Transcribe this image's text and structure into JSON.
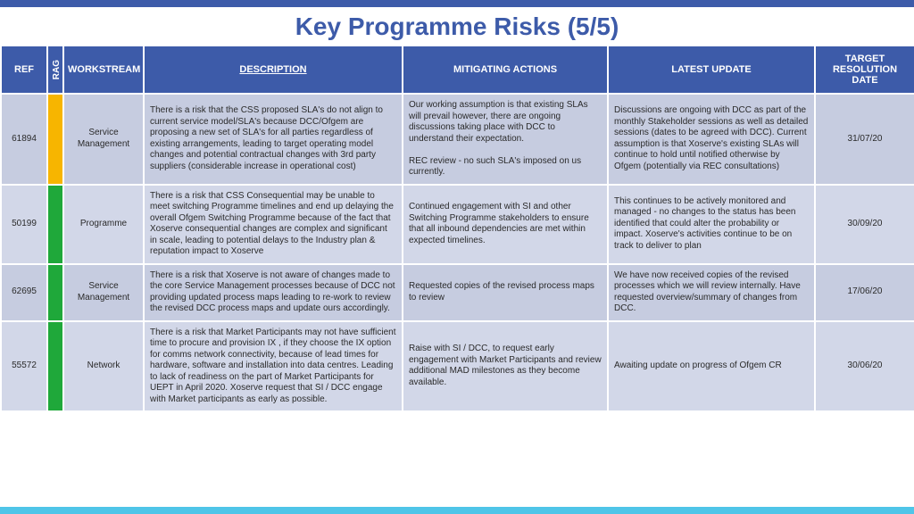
{
  "colors": {
    "header_bar": "#3d5ba9",
    "table_header_bg": "#3d5ba9",
    "title_color": "#3d5ba9",
    "row_odd": "#c6cce0",
    "row_even": "#d2d7e8",
    "rag_amber": "#f7b500",
    "rag_green": "#1fa83a",
    "bottom_bar": "#4fc5e8"
  },
  "title": "Key Programme Risks (5/5)",
  "columns": {
    "ref": "REF",
    "rag": "RAG",
    "workstream": "WORKSTREAM",
    "description": "DESCRIPTION",
    "mitigating": "MITIGATING ACTIONS",
    "update": "LATEST UPDATE",
    "date": "TARGET RESOLUTION DATE"
  },
  "rows": [
    {
      "ref": "61894",
      "rag": "amber",
      "workstream": "Service Management",
      "description": "There is a risk that the CSS proposed SLA's do not align to current service model/SLA's because DCC/Ofgem are proposing a new set of SLA's for all parties regardless of existing arrangements, leading to target operating model changes and potential contractual changes with 3rd party suppliers (considerable increase in operational cost)",
      "mitigating": "Our working assumption is that existing SLAs will prevail however, there are ongoing discussions taking place with DCC to understand their expectation.\n\nREC review - no such SLA's imposed on us currently.",
      "update": "Discussions are ongoing with DCC as part of the monthly Stakeholder sessions as well as detailed sessions (dates to be agreed with DCC). Current assumption is that Xoserve's existing SLAs will continue to hold until notified otherwise by Ofgem (potentially via REC consultations)",
      "date": "31/07/20"
    },
    {
      "ref": "50199",
      "rag": "green",
      "workstream": "Programme",
      "description": "There is a risk that CSS Consequential  may be unable to meet switching Programme timelines and end up delaying the overall Ofgem Switching Programme because of the fact that Xoserve consequential changes are complex and significant in scale, leading to potential delays to the Industry plan & reputation impact to Xoserve",
      "mitigating": "Continued engagement with SI and other Switching Programme stakeholders to ensure that all inbound dependencies are met within expected timelines.",
      "update": "This continues to be actively monitored and managed - no changes to the status has been identified that could alter the probability or impact. Xoserve's activities continue to be on track to deliver to plan",
      "date": "30/09/20"
    },
    {
      "ref": "62695",
      "rag": "green",
      "workstream": "Service Management",
      "description": "There is a risk that Xoserve is not aware of changes made to the core Service Management processes because of DCC not providing updated process maps leading to re-work to review the revised DCC process maps and update ours accordingly.",
      "mitigating": "Requested copies of the revised process maps to review",
      "update": "We have now received copies of the revised processes which we will review internally.  Have requested overview/summary of changes from DCC.",
      "date": "17/06/20"
    },
    {
      "ref": "55572",
      "rag": "green",
      "workstream": "Network",
      "description": "There is a risk that Market Participants may not have sufficient time to procure and provision IX , if they choose the IX option for comms network connectivity, because of lead times for hardware, software and installation into data centres. Leading to lack of readiness on the part of Market Participants for UEPT in April 2020. Xoserve request that SI / DCC engage with Market participants as early as possible.",
      "mitigating": "Raise with SI / DCC, to request early engagement with Market Participants and review additional MAD milestones as they become available.",
      "update": "Awaiting update on progress of Ofgem CR",
      "date": "30/06/20"
    }
  ]
}
